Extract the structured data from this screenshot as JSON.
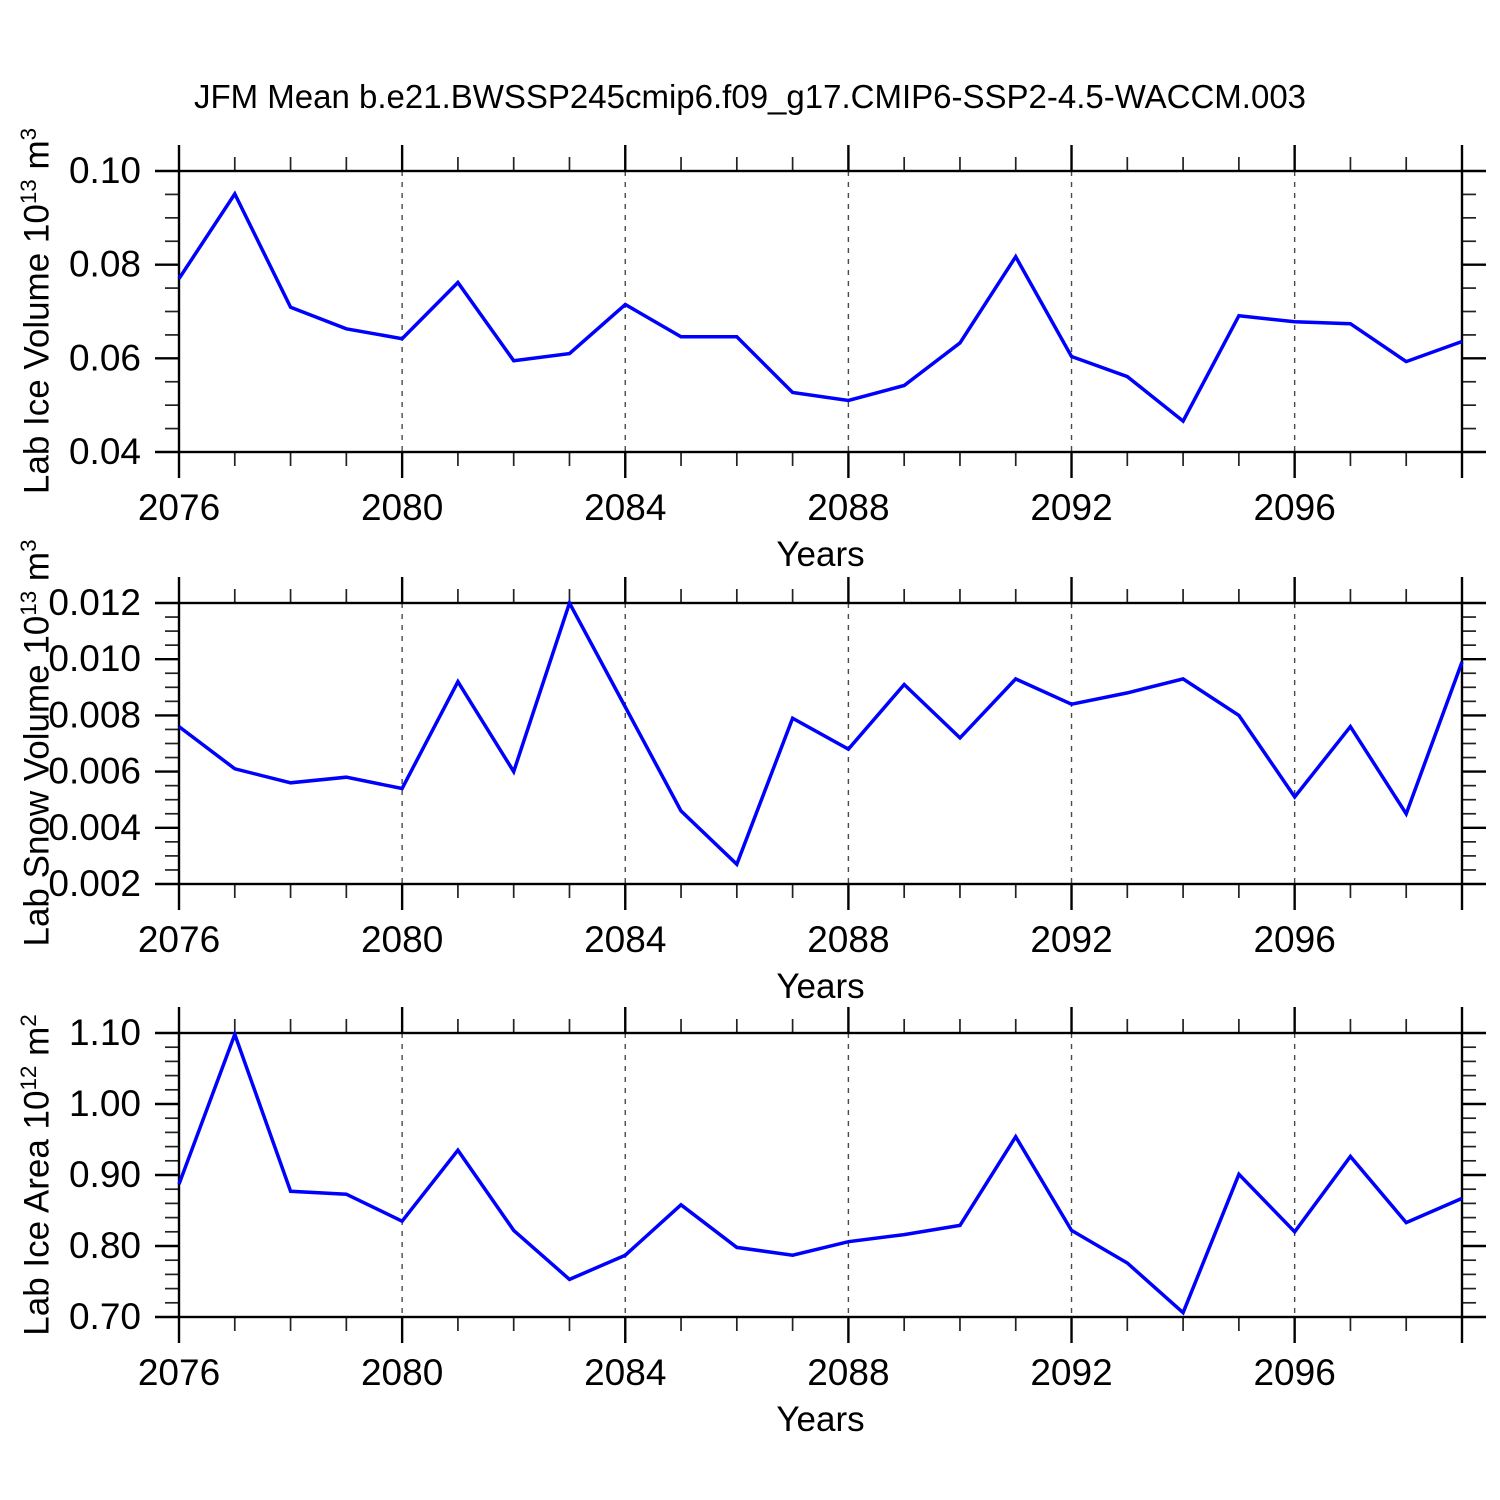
{
  "figure_title": "JFM Mean b.e21.BWSSP245cmip6.f09_g17.CMIP6-SSP2-4.5-WACCM.003",
  "colors": {
    "line": "#0000ff",
    "frame": "#000000",
    "grid": "#4a4a4a",
    "minor_tick": "#222222",
    "text": "#000000",
    "background": "#ffffff"
  },
  "x_axis": {
    "label": "Years",
    "range": [
      2076,
      2099
    ],
    "major_ticks": [
      2076,
      2080,
      2084,
      2088,
      2092,
      2096
    ],
    "major_tick_labels": [
      "2076",
      "2080",
      "2084",
      "2088",
      "2092",
      "2096"
    ],
    "minor_tick_step": 1,
    "grid_dashed": true
  },
  "chart_data": [
    {
      "id": "ice-volume",
      "type": "line",
      "ylabel": {
        "base": "Lab Ice Volume 10",
        "exponent": "13",
        "unit": " m",
        "unit_exponent": "3"
      },
      "xlabel": "Years",
      "ylim": [
        0.04,
        0.1
      ],
      "yticks": [
        0.04,
        0.06,
        0.08,
        0.1
      ],
      "ytick_labels": [
        "0.04",
        "0.06",
        "0.08",
        "0.10"
      ],
      "y_minor_step": 0.005,
      "grid": true,
      "legend": "none",
      "x": [
        2076,
        2077,
        2078,
        2079,
        2080,
        2081,
        2082,
        2083,
        2084,
        2085,
        2086,
        2087,
        2088,
        2089,
        2090,
        2091,
        2092,
        2093,
        2094,
        2095,
        2096,
        2097,
        2098,
        2099
      ],
      "values": [
        0.077,
        0.0951,
        0.0709,
        0.0663,
        0.0642,
        0.0762,
        0.0595,
        0.061,
        0.0715,
        0.0646,
        0.0646,
        0.0527,
        0.051,
        0.0542,
        0.0633,
        0.0817,
        0.0604,
        0.0561,
        0.0466,
        0.0691,
        0.0678,
        0.0674,
        0.0593,
        0.0636
      ]
    },
    {
      "id": "snow-volume",
      "type": "line",
      "ylabel": {
        "base": "Lab Snow Volume 10",
        "exponent": "13",
        "unit": " m",
        "unit_exponent": "3"
      },
      "xlabel": "Years",
      "ylim": [
        0.002,
        0.012
      ],
      "yticks": [
        0.002,
        0.004,
        0.006,
        0.008,
        0.01,
        0.012
      ],
      "ytick_labels": [
        "0.002",
        "0.004",
        "0.006",
        "0.008",
        "0.010",
        "0.012"
      ],
      "y_minor_step": 0.0005,
      "grid": true,
      "legend": "none",
      "x": [
        2076,
        2077,
        2078,
        2079,
        2080,
        2081,
        2082,
        2083,
        2084,
        2085,
        2086,
        2087,
        2088,
        2089,
        2090,
        2091,
        2092,
        2093,
        2094,
        2095,
        2096,
        2097,
        2098,
        2099
      ],
      "values": [
        0.0076,
        0.0061,
        0.0056,
        0.0058,
        0.0054,
        0.0092,
        0.006,
        0.012,
        0.0083,
        0.0046,
        0.0027,
        0.0079,
        0.0068,
        0.0091,
        0.0072,
        0.0093,
        0.0084,
        0.0088,
        0.0093,
        0.008,
        0.0051,
        0.0076,
        0.0045,
        0.0099
      ]
    },
    {
      "id": "ice-area",
      "type": "line",
      "ylabel": {
        "base": "Lab Ice Area 10",
        "exponent": "12",
        "unit": " m",
        "unit_exponent": "2"
      },
      "xlabel": "Years",
      "ylim": [
        0.7,
        1.1
      ],
      "yticks": [
        0.7,
        0.8,
        0.9,
        1.0,
        1.1
      ],
      "ytick_labels": [
        "0.70",
        "0.80",
        "0.90",
        "1.00",
        "1.10"
      ],
      "y_minor_step": 0.02,
      "grid": true,
      "legend": "none",
      "x": [
        2076,
        2077,
        2078,
        2079,
        2080,
        2081,
        2082,
        2083,
        2084,
        2085,
        2086,
        2087,
        2088,
        2089,
        2090,
        2091,
        2092,
        2093,
        2094,
        2095,
        2096,
        2097,
        2098,
        2099
      ],
      "values": [
        0.887,
        1.098,
        0.877,
        0.873,
        0.835,
        0.935,
        0.822,
        0.753,
        0.787,
        0.858,
        0.798,
        0.787,
        0.806,
        0.816,
        0.829,
        0.954,
        0.822,
        0.776,
        0.706,
        0.901,
        0.82,
        0.926,
        0.833,
        0.867
      ]
    }
  ]
}
